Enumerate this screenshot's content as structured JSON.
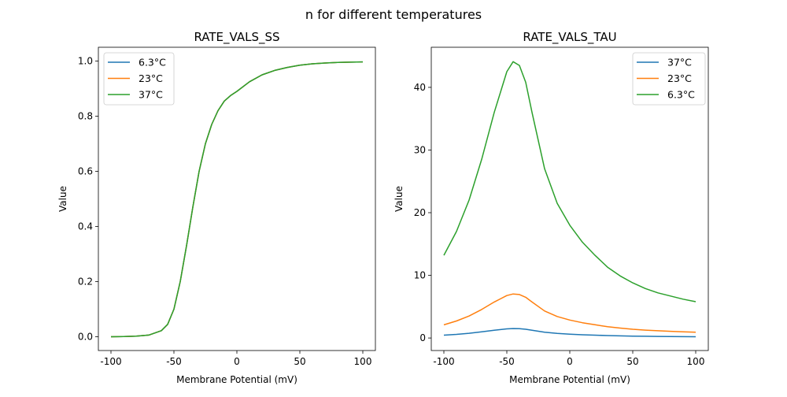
{
  "suptitle": "n for different temperatures",
  "chart_data": [
    {
      "type": "line",
      "title": "RATE_VALS_SS",
      "xlabel": "Membrane Potential (mV)",
      "ylabel": "Value",
      "xlim": [
        -110,
        110
      ],
      "ylim": [
        -0.05,
        1.05
      ],
      "xticks": [
        -100,
        -50,
        0,
        50,
        100
      ],
      "yticks": [
        0.0,
        0.2,
        0.4,
        0.6,
        0.8,
        1.0
      ],
      "ytick_labels": [
        "0.0",
        "0.2",
        "0.4",
        "0.6",
        "0.8",
        "1.0"
      ],
      "grid": false,
      "legend_position": "upper-left",
      "x": [
        -100,
        -90,
        -80,
        -70,
        -60,
        -55,
        -50,
        -45,
        -40,
        -35,
        -30,
        -25,
        -20,
        -15,
        -10,
        -5,
        0,
        10,
        20,
        30,
        40,
        50,
        60,
        70,
        80,
        90,
        100
      ],
      "series": [
        {
          "name": "6.3°C",
          "color": "#1f77b4",
          "values": [
            0.0,
            0.0005,
            0.002,
            0.006,
            0.022,
            0.045,
            0.1,
            0.2,
            0.33,
            0.47,
            0.6,
            0.7,
            0.77,
            0.82,
            0.855,
            0.875,
            0.89,
            0.925,
            0.95,
            0.966,
            0.977,
            0.985,
            0.99,
            0.993,
            0.995,
            0.996,
            0.997
          ]
        },
        {
          "name": "23°C",
          "color": "#ff7f0e",
          "values": [
            0.0,
            0.0005,
            0.002,
            0.006,
            0.022,
            0.045,
            0.1,
            0.2,
            0.33,
            0.47,
            0.6,
            0.7,
            0.77,
            0.82,
            0.855,
            0.875,
            0.89,
            0.925,
            0.95,
            0.966,
            0.977,
            0.985,
            0.99,
            0.993,
            0.995,
            0.996,
            0.997
          ]
        },
        {
          "name": "37°C",
          "color": "#2ca02c",
          "values": [
            0.0,
            0.0005,
            0.002,
            0.006,
            0.022,
            0.045,
            0.1,
            0.2,
            0.33,
            0.47,
            0.6,
            0.7,
            0.77,
            0.82,
            0.855,
            0.875,
            0.89,
            0.925,
            0.95,
            0.966,
            0.977,
            0.985,
            0.99,
            0.993,
            0.995,
            0.996,
            0.997
          ]
        }
      ]
    },
    {
      "type": "line",
      "title": "RATE_VALS_TAU",
      "xlabel": "Membrane Potential (mV)",
      "ylabel": "Value",
      "xlim": [
        -110,
        110
      ],
      "ylim": [
        -2.0,
        46.4
      ],
      "xticks": [
        -100,
        -50,
        0,
        50,
        100
      ],
      "yticks": [
        0,
        10,
        20,
        30,
        40
      ],
      "ytick_labels": [
        "0",
        "10",
        "20",
        "30",
        "40"
      ],
      "grid": false,
      "legend_position": "upper-right",
      "x": [
        -100,
        -90,
        -80,
        -70,
        -60,
        -50,
        -45,
        -40,
        -35,
        -30,
        -20,
        -10,
        0,
        10,
        20,
        30,
        40,
        50,
        60,
        70,
        80,
        90,
        100
      ],
      "series": [
        {
          "name": "37°C",
          "color": "#1f77b4",
          "values": [
            0.45,
            0.58,
            0.75,
            0.98,
            1.23,
            1.46,
            1.51,
            1.49,
            1.4,
            1.23,
            0.92,
            0.74,
            0.62,
            0.52,
            0.45,
            0.39,
            0.34,
            0.3,
            0.27,
            0.25,
            0.23,
            0.21,
            0.2
          ]
        },
        {
          "name": "23°C",
          "color": "#ff7f0e",
          "values": [
            2.1,
            2.71,
            3.51,
            4.55,
            5.74,
            6.78,
            7.03,
            6.94,
            6.5,
            5.74,
            4.31,
            3.43,
            2.87,
            2.44,
            2.11,
            1.8,
            1.58,
            1.4,
            1.26,
            1.15,
            1.07,
            0.99,
            0.93
          ]
        },
        {
          "name": "6.3°C",
          "color": "#2ca02c",
          "values": [
            13.2,
            17.0,
            22.0,
            28.5,
            36.0,
            42.5,
            44.1,
            43.5,
            40.8,
            36.0,
            27.0,
            21.5,
            18.0,
            15.3,
            13.2,
            11.3,
            9.9,
            8.8,
            7.9,
            7.2,
            6.7,
            6.2,
            5.8
          ]
        }
      ]
    }
  ]
}
